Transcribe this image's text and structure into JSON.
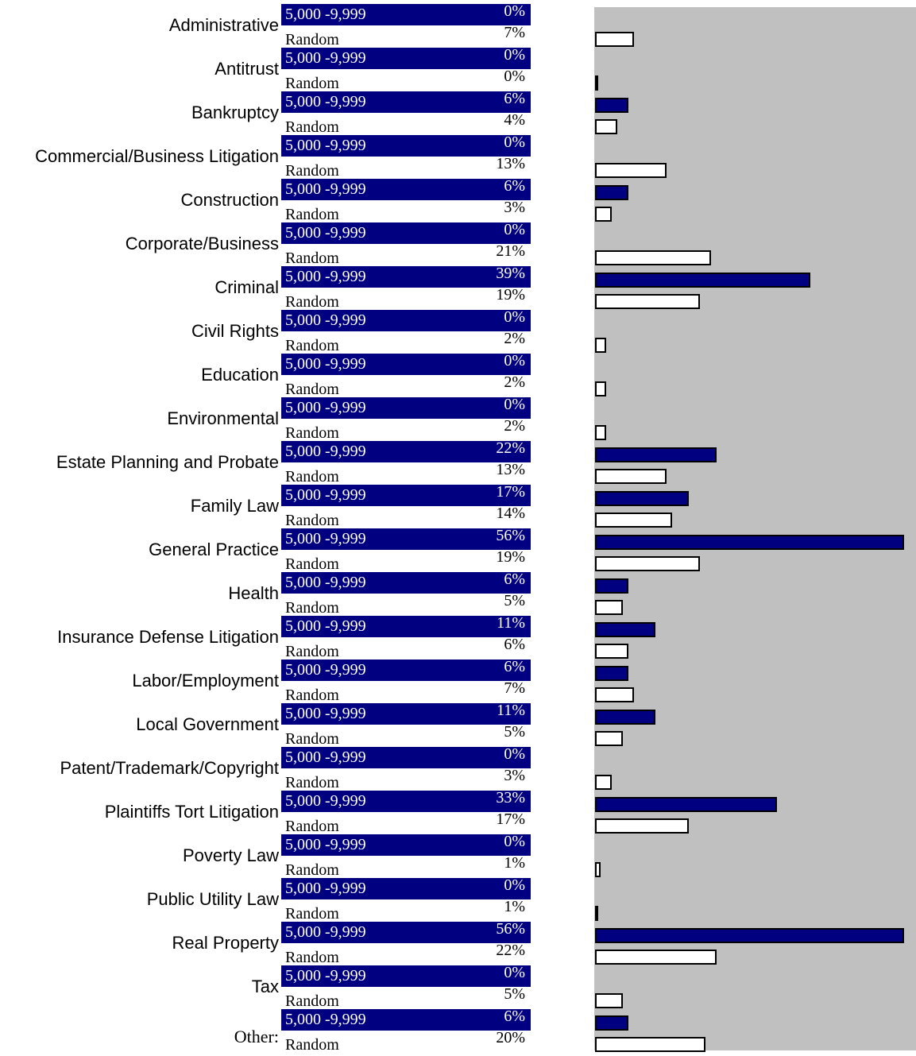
{
  "chart_data": {
    "type": "bar",
    "orientation": "horizontal",
    "grid": false,
    "legend": "none",
    "colors": {
      "series_1": "#000080",
      "series_2": "#ffffff",
      "plot_background": "#c0c0c0"
    },
    "xlim": [
      0,
      56
    ],
    "categories": [
      "Administrative",
      "Antitrust",
      "Bankruptcy",
      "Commercial/Business Litigation",
      "Construction",
      "Corporate/Business",
      "Criminal",
      "Civil Rights",
      "Education",
      "Environmental",
      "Estate Planning and Probate",
      "Family Law",
      "General Practice",
      "Health",
      "Insurance Defense Litigation",
      "Labor/Employment",
      "Local Government",
      "Patent/Trademark/Copyright",
      "Plaintiffs Tort Litigation",
      "Poverty Law",
      "Public Utility Law",
      "Real Property",
      "Tax",
      "Other:"
    ],
    "series": [
      {
        "name": "5,000 -9,999",
        "values": [
          0,
          0,
          6,
          0,
          6,
          0,
          39,
          0,
          0,
          0,
          22,
          17,
          56,
          6,
          11,
          6,
          11,
          0,
          33,
          0,
          0,
          56,
          0,
          6
        ],
        "labels": [
          "0%",
          "0%",
          "6%",
          "0%",
          "6%",
          "0%",
          "39%",
          "0%",
          "0%",
          "0%",
          "22%",
          "17%",
          "56%",
          "6%",
          "11%",
          "6%",
          "11%",
          "0%",
          "33%",
          "0%",
          "0%",
          "56%",
          "0%",
          "6%"
        ]
      },
      {
        "name": "Random",
        "values": [
          7,
          0.2,
          4,
          13,
          3,
          21,
          19,
          2,
          2,
          2,
          13,
          14,
          19,
          5,
          6,
          7,
          5,
          3,
          17,
          1,
          0.5,
          22,
          5,
          20
        ],
        "labels": [
          "7%",
          "0%",
          "4%",
          "13%",
          "3%",
          "21%",
          "19%",
          "2%",
          "2%",
          "2%",
          "13%",
          "14%",
          "19%",
          "5%",
          "6%",
          "7%",
          "5%",
          "3%",
          "17%",
          "1%",
          "1%",
          "22%",
          "5%",
          "20%"
        ]
      }
    ]
  }
}
